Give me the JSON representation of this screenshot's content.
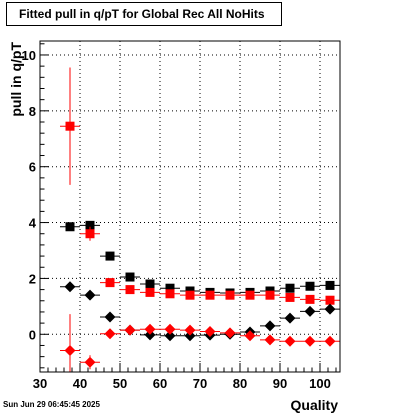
{
  "chart_data": {
    "type": "scatter",
    "title": "Fitted pull in q/pT for Global Rec All NoHits",
    "xlabel": "Quality",
    "ylabel": "pull in q/pT",
    "xlim": [
      30,
      105
    ],
    "ylim": [
      -1.35,
      10.5
    ],
    "grid": true,
    "x_ticks": [
      30,
      40,
      50,
      60,
      70,
      80,
      90,
      100
    ],
    "y_ticks": [
      0,
      2,
      4,
      6,
      8,
      10
    ],
    "series": [
      {
        "color": "#000000",
        "marker": "square",
        "x": [
          37.5,
          42.5,
          47.5,
          52.5,
          57.5,
          62.5,
          67.5,
          72.5,
          77.5,
          82.5,
          87.5,
          92.5,
          97.5,
          102.5
        ],
        "y": [
          3.85,
          3.9,
          2.8,
          2.05,
          1.8,
          1.65,
          1.55,
          1.5,
          1.48,
          1.5,
          1.55,
          1.65,
          1.72,
          1.75
        ],
        "yerr": [
          0.15,
          0.12,
          0.06,
          0.04,
          0.04,
          0.03,
          0.03,
          0.03,
          0.03,
          0.03,
          0.03,
          0.04,
          0.04,
          0.05
        ]
      },
      {
        "color": "#ff0000",
        "marker": "square",
        "x": [
          37.5,
          42.5,
          47.5,
          52.5,
          57.5,
          62.5,
          67.5,
          72.5,
          77.5,
          82.5,
          87.5,
          92.5,
          97.5,
          102.5
        ],
        "y": [
          7.45,
          3.6,
          1.85,
          1.6,
          1.5,
          1.45,
          1.4,
          1.4,
          1.4,
          1.4,
          1.4,
          1.32,
          1.25,
          1.22
        ],
        "yerr": [
          2.1,
          0.25,
          0.06,
          0.04,
          0.03,
          0.03,
          0.03,
          0.03,
          0.03,
          0.03,
          0.03,
          0.03,
          0.03,
          0.04
        ]
      },
      {
        "color": "#000000",
        "marker": "diamond",
        "x": [
          37.5,
          42.5,
          47.5,
          52.5,
          57.5,
          62.5,
          67.5,
          72.5,
          77.5,
          82.5,
          87.5,
          92.5,
          97.5,
          102.5
        ],
        "y": [
          1.7,
          1.4,
          0.62,
          0.15,
          -0.02,
          -0.05,
          -0.05,
          -0.03,
          0.0,
          0.08,
          0.3,
          0.58,
          0.82,
          0.9
        ],
        "yerr": [
          0.12,
          0.06,
          0.04,
          0.03,
          0.02,
          0.02,
          0.02,
          0.02,
          0.02,
          0.02,
          0.03,
          0.03,
          0.03,
          0.04
        ]
      },
      {
        "color": "#ff0000",
        "marker": "diamond",
        "x": [
          37.5,
          42.5,
          47.5,
          52.5,
          57.5,
          62.5,
          67.5,
          72.5,
          77.5,
          82.5,
          87.5,
          92.5,
          97.5,
          102.5
        ],
        "y": [
          -0.58,
          -1.0,
          0.02,
          0.15,
          0.18,
          0.18,
          0.15,
          0.1,
          0.05,
          -0.05,
          -0.2,
          -0.25,
          -0.25,
          -0.25
        ],
        "yerr": [
          1.3,
          0.25,
          0.05,
          0.03,
          0.02,
          0.02,
          0.02,
          0.02,
          0.02,
          0.02,
          0.02,
          0.02,
          0.03,
          0.03
        ]
      }
    ]
  },
  "timestamp": "Sun Jun 29 06:45:45 2025"
}
